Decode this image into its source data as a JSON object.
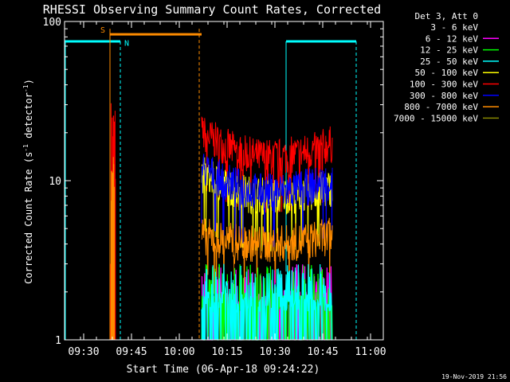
{
  "chart_data": {
    "type": "line",
    "title": "RHESSI Observing Summary Count Rates, Corrected",
    "xlabel": "Start Time (06-Apr-18 09:24:22)",
    "ylabel": "Corrected Count Rate (s⁻¹ detector⁻¹)",
    "ylabel_main": "Corrected Count Rate (s",
    "ylabel_sup1": "-1",
    "ylabel_mid": " detector",
    "ylabel_sup2": "-1",
    "ylabel_end": ")",
    "y_scale": "log",
    "ylim": [
      1,
      100
    ],
    "xlim": [
      "09:24",
      "11:04"
    ],
    "x_ticks": [
      "09:30",
      "09:45",
      "10:00",
      "10:15",
      "10:30",
      "10:45",
      "11:00"
    ],
    "y_ticks": [
      "1",
      "10",
      "100"
    ],
    "grid": false,
    "legend": {
      "placement": "top-right",
      "header": "Det 3, Att 0",
      "entries": [
        {
          "label": "3 - 6 keV",
          "color": "#000000"
        },
        {
          "label": "6 - 12 keV",
          "color": "#ff00ff"
        },
        {
          "label": "12 - 25 keV",
          "color": "#00ff00"
        },
        {
          "label": "25 - 50 keV",
          "color": "#00ffff"
        },
        {
          "label": "50 - 100 keV",
          "color": "#ffff00"
        },
        {
          "label": "100 - 300 keV",
          "color": "#ff0000"
        },
        {
          "label": "300 - 800 keV",
          "color": "#0000ff"
        },
        {
          "label": "800 - 7000 keV",
          "color": "#ff8c00"
        },
        {
          "label": "7000 - 15000 keV",
          "color": "#888800"
        }
      ]
    },
    "annotations": {
      "saa_label": "S",
      "night_label": "N",
      "saa_color": "#ff8c00",
      "night_color": "#00ffff"
    },
    "series_levels": [
      {
        "name": "100 - 300 keV",
        "color": "#ff0000",
        "start": 20.0,
        "mid": 14.0,
        "end": 17.0
      },
      {
        "name": "50 - 100 keV",
        "color": "#ffff00",
        "start": 11.0,
        "mid": 8.0,
        "end": 9.0
      },
      {
        "name": "300 - 800 keV",
        "color": "#0000ff",
        "start": 12.0,
        "mid": 8.5,
        "end": 10.0
      },
      {
        "name": "800 - 7000 keV",
        "color": "#ff8c00",
        "start": 4.5,
        "mid": 4.0,
        "end": 4.5
      },
      {
        "name": "3 - 6 keV",
        "color": "#000000",
        "start": 1.5,
        "mid": 1.5,
        "end": 1.5
      },
      {
        "name": "6 - 12 keV",
        "color": "#ff00ff",
        "start": 1.5,
        "mid": 1.5,
        "end": 1.5
      },
      {
        "name": "12 - 25 keV",
        "color": "#00ff00",
        "start": 1.5,
        "mid": 1.5,
        "end": 1.5
      },
      {
        "name": "25 - 50 keV",
        "color": "#00ffff",
        "start": 1.5,
        "mid": 1.5,
        "end": 1.5
      }
    ],
    "data_interval": [
      "10:07",
      "10:48"
    ],
    "saa_spike_time": "09:39",
    "saa_spike_peak": 33
  },
  "footer": {
    "timestamp": "19-Nov-2019 21:56"
  }
}
